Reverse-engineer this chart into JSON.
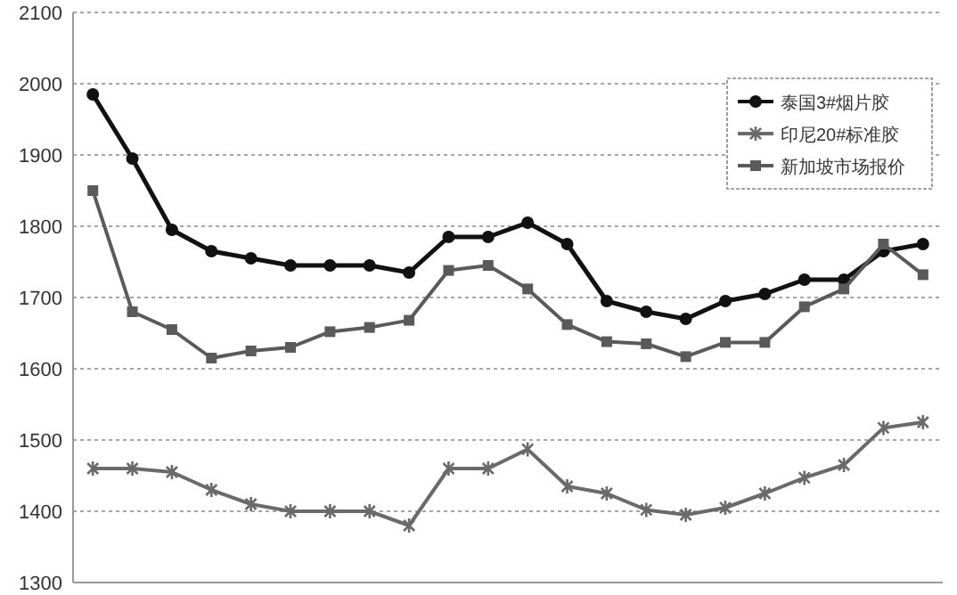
{
  "chart_data": {
    "type": "line",
    "categories": [
      null,
      null,
      null,
      null,
      null,
      null,
      null,
      null,
      null,
      null,
      null,
      null,
      null,
      null,
      null,
      null,
      null,
      null,
      null,
      null,
      null,
      null
    ],
    "series": [
      {
        "name": "泰国3#烟片胶",
        "color": "#111111",
        "marker": "circle",
        "values": [
          1985,
          1895,
          1795,
          1765,
          1755,
          1745,
          1745,
          1745,
          1735,
          1785,
          1785,
          1805,
          1775,
          1695,
          1680,
          1670,
          1695,
          1705,
          1725,
          1725,
          1765,
          1775
        ]
      },
      {
        "name": "印尼20#标准胶",
        "color": "#6a6a6a",
        "marker": "cross",
        "values": [
          1460,
          1460,
          1455,
          1430,
          1410,
          1400,
          1400,
          1400,
          1380,
          1460,
          1460,
          1487,
          1435,
          1425,
          1402,
          1395,
          1405,
          1425,
          1447,
          1465,
          1517,
          1525
        ]
      },
      {
        "name": "新加坡市场报价",
        "color": "#5a5a5a",
        "marker": "square",
        "values": [
          1850,
          1680,
          1655,
          1615,
          1625,
          1630,
          1652,
          1658,
          1668,
          1738,
          1745,
          1712,
          1662,
          1638,
          1635,
          1617,
          1637,
          1637,
          1687,
          1712,
          1775,
          1732
        ]
      }
    ],
    "ylim": [
      1300,
      2100
    ],
    "yticks": [
      1300,
      1400,
      1500,
      1600,
      1700,
      1800,
      1900,
      2000,
      2100
    ],
    "grid": "y",
    "legend": "top right",
    "line_style": "solid"
  }
}
